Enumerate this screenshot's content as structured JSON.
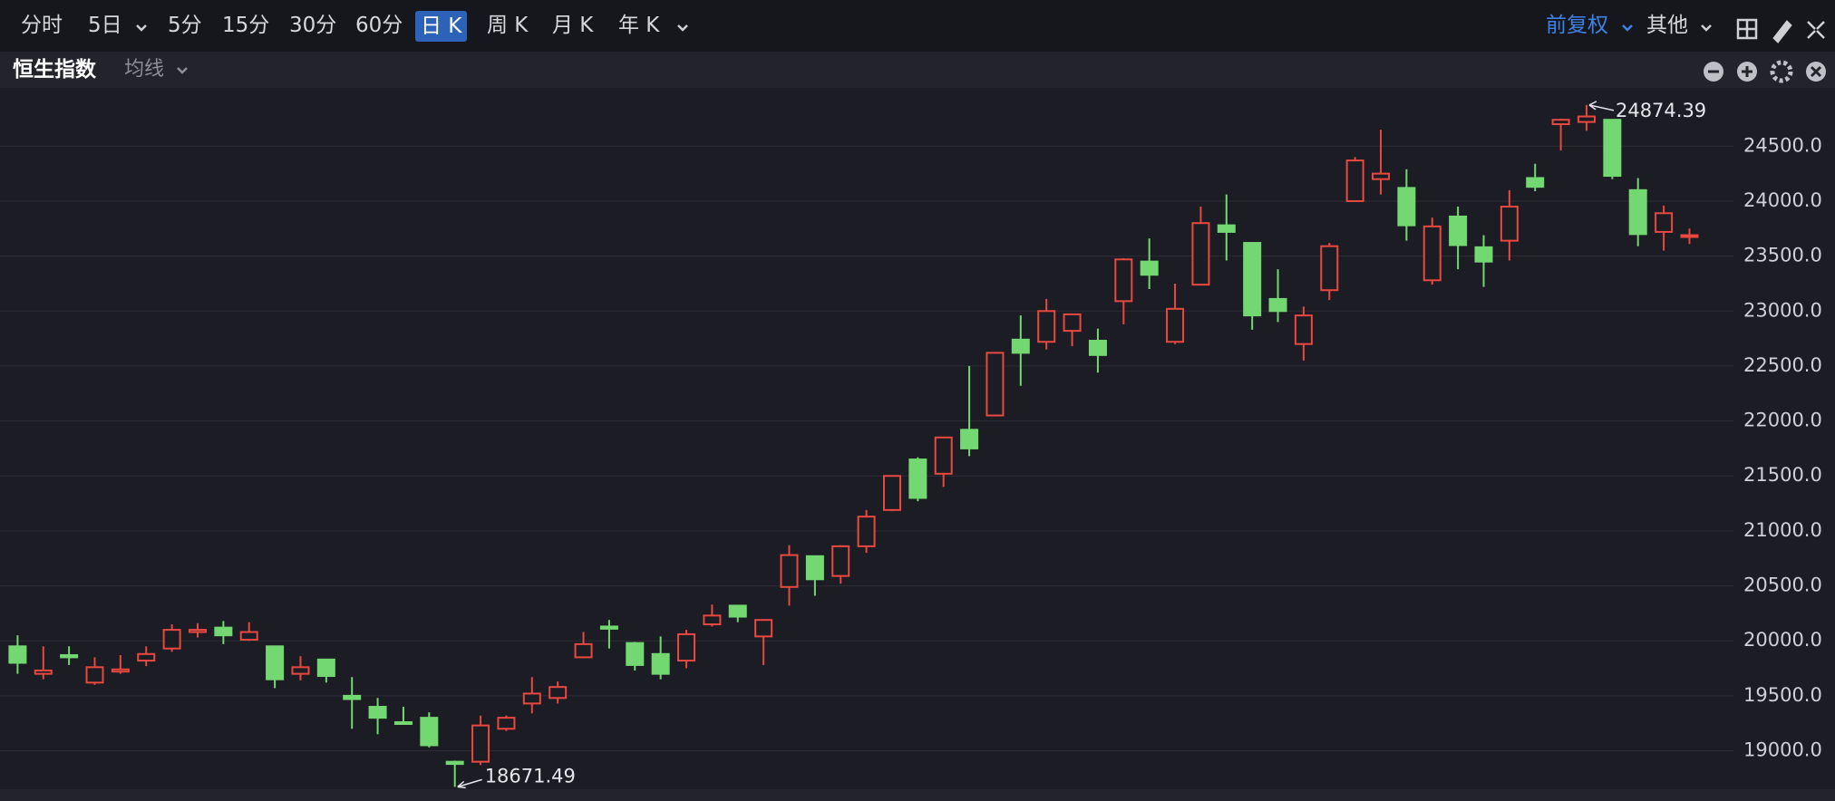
{
  "toolbar": {
    "periods": [
      "分时",
      "5日",
      "5分",
      "15分",
      "30分",
      "60分",
      "日 K",
      "周 K",
      "月 K",
      "年 K"
    ],
    "adjust": "前复权",
    "other": "其他"
  },
  "header": {
    "index_name": "恒生指数",
    "ma": "均线"
  },
  "chart_data": {
    "type": "candlestick",
    "categories": [
      null,
      null,
      null,
      null,
      null,
      null,
      null,
      null,
      null,
      null,
      null,
      null,
      null,
      null,
      null,
      null,
      null,
      null,
      null,
      null,
      null,
      null,
      null,
      null,
      null,
      null,
      null,
      null,
      null,
      null,
      null,
      null,
      null,
      null,
      null,
      null,
      null,
      null,
      null,
      null,
      null,
      null,
      null,
      null,
      null,
      null,
      null,
      null,
      null,
      null,
      null,
      null,
      null,
      null,
      null,
      null,
      null,
      null,
      null,
      null,
      null,
      null,
      null,
      null,
      null,
      null
    ],
    "open": [
      19950,
      19700,
      19870,
      19620,
      19720,
      19820,
      19930,
      20080,
      20120,
      20010,
      19950,
      19700,
      19830,
      19500,
      19400,
      19260,
      19300,
      18900,
      18900,
      19200,
      19430,
      19480,
      19850,
      20130,
      19980,
      19880,
      19820,
      20150,
      20320,
      20040,
      20490,
      20770,
      20590,
      20860,
      21190,
      21650,
      21520,
      21920,
      22050,
      22740,
      22720,
      22820,
      22730,
      23090,
      23450,
      22720,
      23240,
      23780,
      23620,
      23110,
      22700,
      23190,
      24000,
      24200,
      24120,
      23280,
      23860,
      23580,
      23640,
      24210,
      24700,
      24720,
      24740,
      24100,
      23720,
      23680
    ],
    "high": [
      20050,
      19950,
      19950,
      19850,
      19870,
      19950,
      20150,
      20160,
      20180,
      20170,
      19950,
      19860,
      19830,
      19670,
      19480,
      19400,
      19350,
      18910,
      19320,
      19320,
      19670,
      19630,
      20080,
      20190,
      19990,
      20040,
      20100,
      20330,
      20320,
      20190,
      20870,
      20770,
      20870,
      21190,
      21500,
      21670,
      21850,
      22500,
      22620,
      22960,
      23110,
      22970,
      22840,
      23480,
      23660,
      23250,
      23950,
      24060,
      23620,
      23380,
      23040,
      23620,
      24400,
      24650,
      24290,
      23850,
      23950,
      23690,
      24100,
      24340,
      24750,
      24874.39,
      24740,
      24210,
      23960,
      23750
    ],
    "low": [
      19700,
      19650,
      19780,
      19600,
      19700,
      19770,
      19900,
      20030,
      19970,
      20000,
      19570,
      19640,
      19620,
      19200,
      19150,
      19240,
      19030,
      18671.49,
      18870,
      19180,
      19340,
      19430,
      19850,
      19930,
      19730,
      19650,
      19750,
      20130,
      20170,
      19780,
      20320,
      20410,
      20520,
      20800,
      21180,
      21270,
      21400,
      21680,
      22050,
      22320,
      22650,
      22680,
      22440,
      22880,
      23200,
      22700,
      23240,
      23460,
      22830,
      22900,
      22550,
      23100,
      24000,
      24060,
      23640,
      23240,
      23380,
      23220,
      23460,
      24090,
      24460,
      24640,
      24200,
      23590,
      23550,
      23610
    ],
    "close": [
      19800,
      19730,
      19850,
      19760,
      19740,
      19880,
      20100,
      20100,
      20050,
      20080,
      19650,
      19760,
      19680,
      19470,
      19300,
      19250,
      19050,
      18880,
      19230,
      19300,
      19520,
      19580,
      19970,
      20110,
      19780,
      19700,
      20060,
      20230,
      20220,
      20190,
      20780,
      20560,
      20860,
      21130,
      21500,
      21300,
      21850,
      21750,
      22620,
      22620,
      23000,
      22970,
      22600,
      23470,
      23330,
      23020,
      23800,
      23720,
      22960,
      23000,
      22960,
      23590,
      24370,
      24250,
      23780,
      23770,
      23600,
      23450,
      23950,
      24130,
      24740,
      24770,
      24230,
      23700,
      23890,
      23690
    ],
    "up_color": "#e8483f",
    "down_color": "#74d872",
    "ylim": [
      18650,
      25030
    ],
    "yticks": [
      {
        "value": 19000,
        "label": "19000.0"
      },
      {
        "value": 19500,
        "label": "19500.0"
      },
      {
        "value": 20000,
        "label": "20000.0"
      },
      {
        "value": 20500,
        "label": "20500.0"
      },
      {
        "value": 21000,
        "label": "21000.0"
      },
      {
        "value": 21500,
        "label": "21500.0"
      },
      {
        "value": 22000,
        "label": "22000.0"
      },
      {
        "value": 22500,
        "label": "22500.0"
      },
      {
        "value": 23000,
        "label": "23000.0"
      },
      {
        "value": 23500,
        "label": "23500.0"
      },
      {
        "value": 24000,
        "label": "24000.0"
      },
      {
        "value": 24500,
        "label": "24500.0"
      }
    ],
    "grid": true
  }
}
